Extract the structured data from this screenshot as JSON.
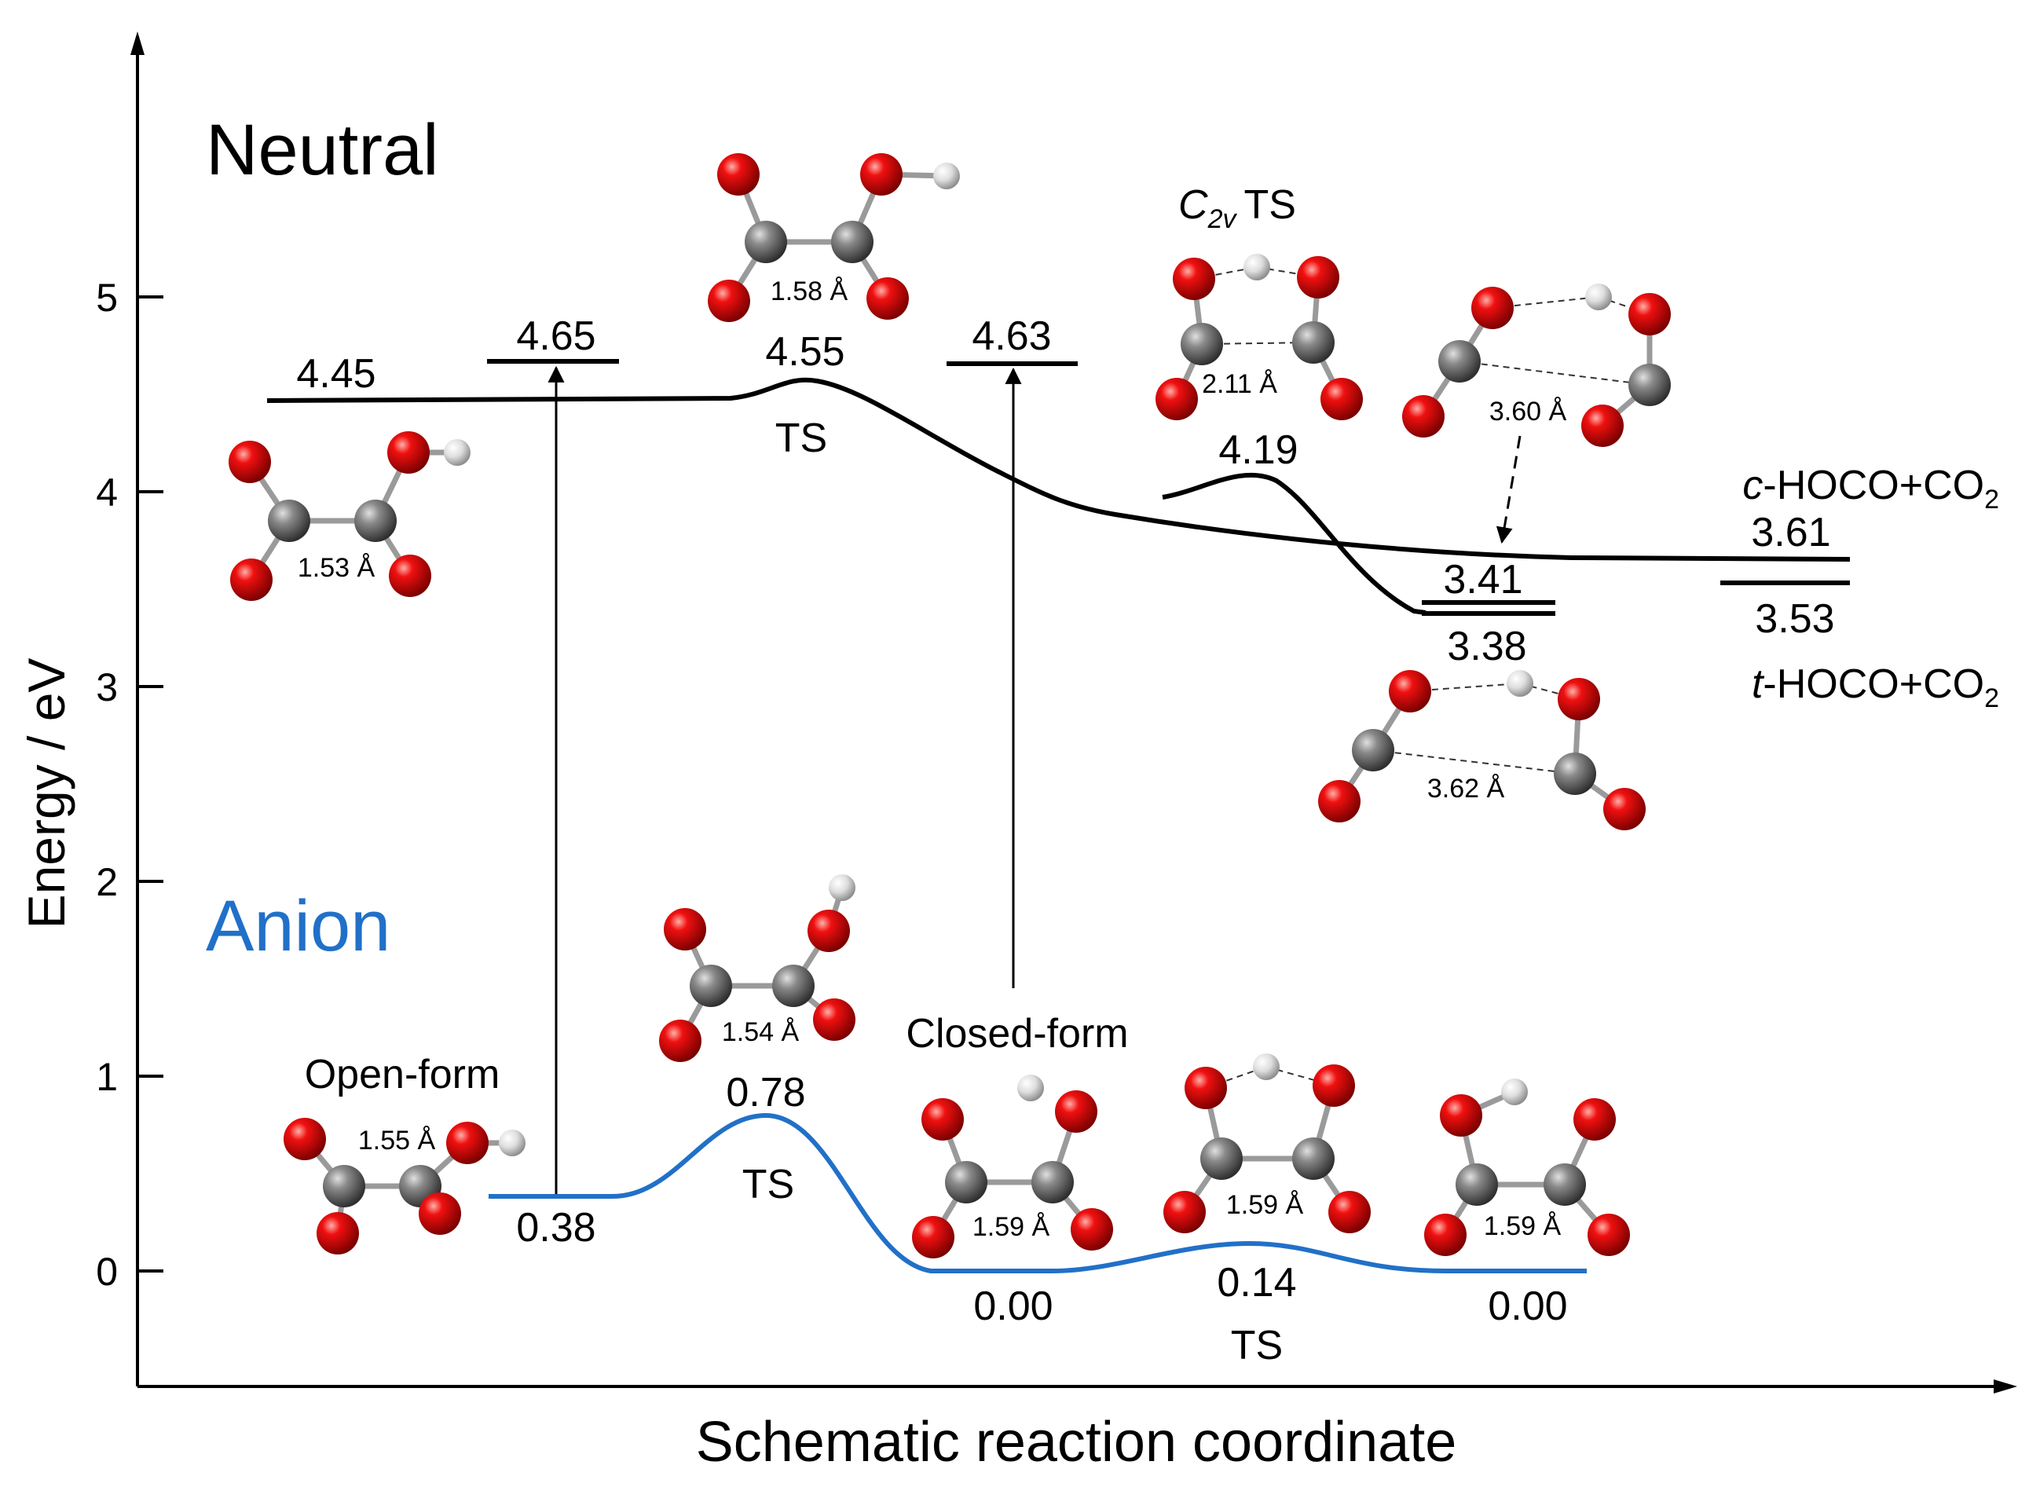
{
  "axes": {
    "y_label": "Energy / eV",
    "x_label": "Schematic reaction coordinate",
    "y_ticks": [
      "0",
      "1",
      "2",
      "3",
      "4",
      "5"
    ],
    "y_range": [
      -0.6,
      6.5
    ]
  },
  "states": {
    "neutral": "Neutral",
    "anion": "Anion",
    "neutral_color": "#000000",
    "anion_color": "#2170c8"
  },
  "neutral_levels": {
    "l445": "4.45",
    "l465": "4.65",
    "l455": "4.55",
    "ts_main": "TS",
    "l463": "4.63",
    "l419": "4.19",
    "c2v_ts_c": "C",
    "c2v_ts_sub": "2v",
    "c2v_ts_rest": "TS",
    "l341": "3.41",
    "l338": "3.38",
    "l361": "3.61",
    "l353": "3.53",
    "c_hoco_italic": "c",
    "c_hoco_rest": "-HOCO+CO",
    "c_hoco_sub": "2",
    "t_hoco_italic": "t",
    "t_hoco_rest": "-HOCO+CO",
    "t_hoco_sub": "2"
  },
  "anion_levels": {
    "open_form": "Open-form",
    "closed_form": "Closed-form",
    "l038": "0.38",
    "l078": "0.78",
    "ts1": "TS",
    "l000a": "0.00",
    "l014": "0.14",
    "ts2": "TS",
    "l000b": "0.00"
  },
  "bond_lengths": {
    "n_open": "1.53 Å",
    "n_ts": "1.58 Å",
    "n_c2v": "2.11 Å",
    "n_c360": "3.60 Å",
    "n_t362": "3.62 Å",
    "a_open": "1.55 Å",
    "a_ts": "1.54 Å",
    "a_closed1": "1.59 Å",
    "a_ts2": "1.59 Å",
    "a_closed2": "1.59 Å"
  },
  "chart_data": {
    "type": "energy_diagram",
    "ylabel": "Energy / eV",
    "xlabel": "Schematic reaction coordinate",
    "ylim": [
      -0.6,
      6.5
    ],
    "neutral": [
      {
        "label": "4.45",
        "energy": 4.45
      },
      {
        "label": "4.65",
        "energy": 4.65,
        "note": "vertical detachment from open-form anion"
      },
      {
        "label": "4.55",
        "energy": 4.55,
        "note": "TS"
      },
      {
        "label": "4.63",
        "energy": 4.63,
        "note": "vertical detachment from closed-form anion"
      },
      {
        "label": "4.19",
        "energy": 4.19,
        "note": "C2v TS"
      },
      {
        "label": "3.41",
        "energy": 3.41
      },
      {
        "label": "3.38",
        "energy": 3.38
      },
      {
        "label": "3.61",
        "energy": 3.61,
        "note": "c-HOCO+CO2"
      },
      {
        "label": "3.53",
        "energy": 3.53,
        "note": "t-HOCO+CO2"
      }
    ],
    "anion": [
      {
        "label": "0.38",
        "energy": 0.38,
        "note": "Open-form"
      },
      {
        "label": "0.78",
        "energy": 0.78,
        "note": "TS"
      },
      {
        "label": "0.00",
        "energy": 0.0,
        "note": "Closed-form"
      },
      {
        "label": "0.14",
        "energy": 0.14,
        "note": "TS"
      },
      {
        "label": "0.00",
        "energy": 0.0
      }
    ]
  }
}
